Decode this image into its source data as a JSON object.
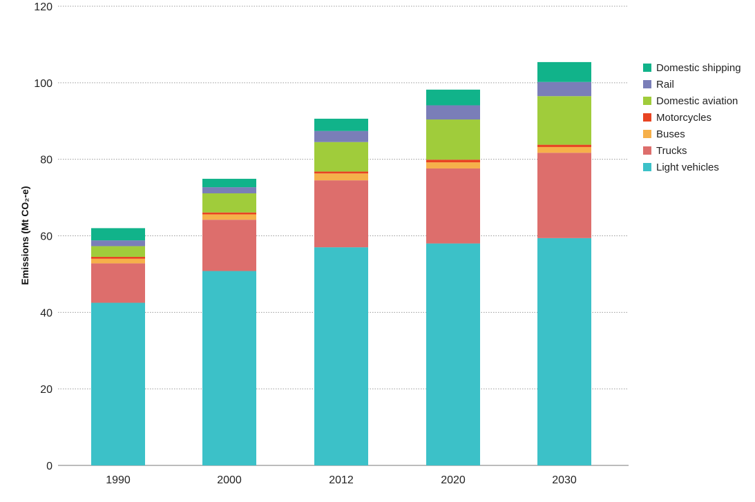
{
  "chart_data": {
    "type": "bar",
    "stacked": true,
    "ylabel": "Emissions (Mt CO₂-e)",
    "ylim": [
      0,
      120
    ],
    "yticks": [
      0,
      20,
      40,
      60,
      80,
      100,
      120
    ],
    "grid": true,
    "legend_position": "right",
    "categories": [
      "1990",
      "2000",
      "2012",
      "2020",
      "2030"
    ],
    "series": [
      {
        "name": "Light vehicles",
        "color": "#3cc1c8",
        "values": [
          42.5,
          50.8,
          57.0,
          58.0,
          59.4
        ]
      },
      {
        "name": "Trucks",
        "color": "#dd6e6c",
        "values": [
          10.3,
          13.4,
          17.5,
          19.6,
          22.3
        ]
      },
      {
        "name": "Buses",
        "color": "#f6b04a",
        "values": [
          1.2,
          1.4,
          1.8,
          1.6,
          1.5
        ]
      },
      {
        "name": "Motorcycles",
        "color": "#e84422",
        "values": [
          0.5,
          0.5,
          0.5,
          0.7,
          0.6
        ]
      },
      {
        "name": "Domestic aviation",
        "color": "#a0cc3b",
        "values": [
          2.8,
          5.0,
          7.7,
          10.5,
          12.7
        ]
      },
      {
        "name": "Rail",
        "color": "#7a7eb8",
        "values": [
          1.5,
          1.6,
          2.9,
          3.7,
          3.7
        ]
      },
      {
        "name": "Domestic shipping",
        "color": "#11b38a",
        "values": [
          3.2,
          2.2,
          3.2,
          4.1,
          5.2
        ]
      }
    ]
  },
  "legend_order": [
    "Domestic shipping",
    "Rail",
    "Domestic aviation",
    "Motorcycles",
    "Buses",
    "Trucks",
    "Light vehicles"
  ]
}
